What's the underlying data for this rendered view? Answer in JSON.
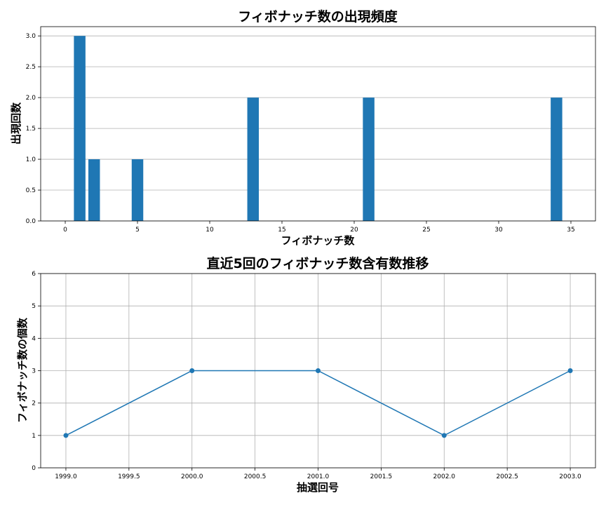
{
  "chart_data": [
    {
      "type": "bar",
      "title": "フィボナッチ数の出現頻度",
      "xlabel": "フィボナッチ数",
      "ylabel": "出現回数",
      "x": [
        1,
        2,
        5,
        13,
        21,
        34
      ],
      "values": [
        3,
        1,
        1,
        2,
        2,
        2
      ],
      "xlim": [
        -1.7,
        36.7
      ],
      "ylim": [
        0,
        3.15
      ],
      "xticks": [
        0,
        5,
        10,
        15,
        20,
        25,
        30,
        35
      ],
      "yticks": [
        0.0,
        0.5,
        1.0,
        1.5,
        2.0,
        2.5,
        3.0
      ],
      "xtick_labels": [
        "0",
        "5",
        "10",
        "15",
        "20",
        "25",
        "30",
        "35"
      ],
      "ytick_labels": [
        "0.0",
        "0.5",
        "1.0",
        "1.5",
        "2.0",
        "2.5",
        "3.0"
      ],
      "grid": "y",
      "color": "#1f77b4"
    },
    {
      "type": "line",
      "title": "直近5回のフィボナッチ数含有数推移",
      "xlabel": "抽選回号",
      "ylabel": "フィボナッチ数の個数",
      "x": [
        1999,
        2000,
        2001,
        2002,
        2003
      ],
      "values": [
        1,
        3,
        3,
        1,
        3
      ],
      "xlim": [
        1998.8,
        2003.2
      ],
      "ylim": [
        0,
        6
      ],
      "xticks": [
        1999.0,
        1999.5,
        2000.0,
        2000.5,
        2001.0,
        2001.5,
        2002.0,
        2002.5,
        2003.0
      ],
      "yticks": [
        0,
        1,
        2,
        3,
        4,
        5,
        6
      ],
      "xtick_labels": [
        "1999.0",
        "1999.5",
        "2000.0",
        "2000.5",
        "2001.0",
        "2001.5",
        "2002.0",
        "2002.5",
        "2003.0"
      ],
      "ytick_labels": [
        "0",
        "1",
        "2",
        "3",
        "4",
        "5",
        "6"
      ],
      "grid": "both",
      "marker": "circle",
      "color": "#1f77b4"
    }
  ]
}
